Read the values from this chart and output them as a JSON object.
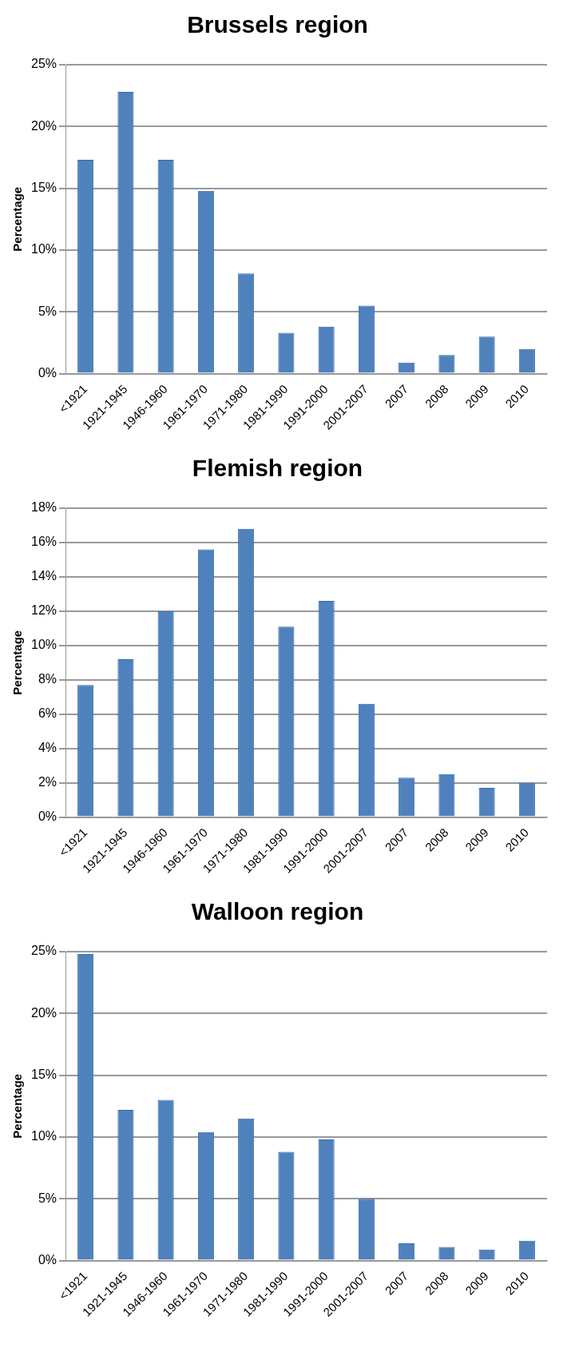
{
  "chart_data": [
    {
      "type": "bar",
      "title": "Brussels region",
      "ylabel": "Percentage",
      "categories": [
        "<1921",
        "1921-1945",
        "1946-1960",
        "1961-1970",
        "1971-1980",
        "1981-1990",
        "1991-2000",
        "2001-2007",
        "2007",
        "2008",
        "2009",
        "2010"
      ],
      "color": "#4f81bd",
      "values": [
        17.3,
        22.8,
        17.3,
        14.8,
        8.1,
        3.3,
        3.8,
        5.5,
        0.9,
        1.5,
        3.0,
        2.0
      ],
      "ylim": [
        0,
        25
      ],
      "yticks": [
        {
          "value": 0,
          "label": "0%"
        },
        {
          "value": 5,
          "label": "5%"
        },
        {
          "value": 10,
          "label": "10%"
        },
        {
          "value": 15,
          "label": "15%"
        },
        {
          "value": 20,
          "label": "20%"
        },
        {
          "value": 25,
          "label": "25%"
        }
      ],
      "grid": "y",
      "legend": false
    },
    {
      "type": "bar",
      "title": "Flemish region",
      "ylabel": "Percentage",
      "categories": [
        "<1921",
        "1921-1945",
        "1946-1960",
        "1961-1970",
        "1971-1980",
        "1981-1990",
        "1991-2000",
        "2001-2007",
        "2007",
        "2008",
        "2009",
        "2010"
      ],
      "color": "#4f81bd",
      "values": [
        7.7,
        9.2,
        12.0,
        15.6,
        16.8,
        11.1,
        12.6,
        6.6,
        2.3,
        2.5,
        1.7,
        2.0
      ],
      "ylim": [
        0,
        18
      ],
      "yticks": [
        {
          "value": 0,
          "label": "0%"
        },
        {
          "value": 2,
          "label": "2%"
        },
        {
          "value": 4,
          "label": "4%"
        },
        {
          "value": 6,
          "label": "6%"
        },
        {
          "value": 8,
          "label": "8%"
        },
        {
          "value": 10,
          "label": "10%"
        },
        {
          "value": 12,
          "label": "12%"
        },
        {
          "value": 14,
          "label": "14%"
        },
        {
          "value": 16,
          "label": "16%"
        },
        {
          "value": 18,
          "label": "18%"
        }
      ],
      "grid": "y",
      "legend": false
    },
    {
      "type": "bar",
      "title": "Walloon region",
      "ylabel": "Percentage",
      "categories": [
        "<1921",
        "1921-1945",
        "1946-1960",
        "1961-1970",
        "1971-1980",
        "1981-1990",
        "1991-2000",
        "2001-2007",
        "2007",
        "2008",
        "2009",
        "2010"
      ],
      "color": "#4f81bd",
      "values": [
        24.8,
        12.2,
        13.0,
        10.4,
        11.5,
        8.8,
        9.8,
        5.0,
        1.4,
        1.1,
        0.9,
        1.6
      ],
      "ylim": [
        0,
        25
      ],
      "yticks": [
        {
          "value": 0,
          "label": "0%"
        },
        {
          "value": 5,
          "label": "5%"
        },
        {
          "value": 10,
          "label": "10%"
        },
        {
          "value": 15,
          "label": "15%"
        },
        {
          "value": 20,
          "label": "20%"
        },
        {
          "value": 25,
          "label": "25%"
        }
      ],
      "grid": "y",
      "legend": false
    }
  ]
}
